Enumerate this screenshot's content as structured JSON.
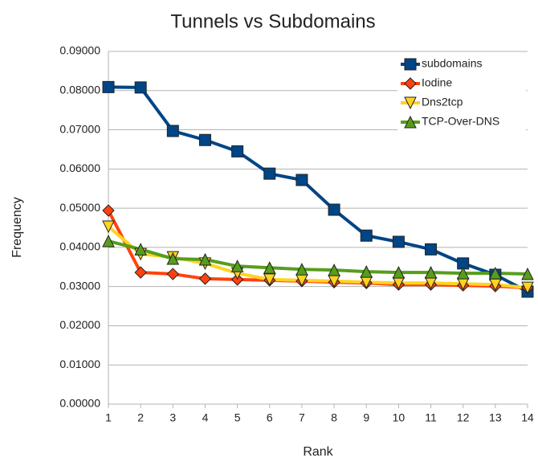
{
  "chart_data": {
    "type": "line",
    "title": "Tunnels vs Subdomains",
    "xlabel": "Rank",
    "ylabel": "Frequency",
    "x": [
      1,
      2,
      3,
      4,
      5,
      6,
      7,
      8,
      9,
      10,
      11,
      12,
      13,
      14
    ],
    "xlim": [
      1,
      14
    ],
    "xticks": [
      1,
      2,
      3,
      4,
      5,
      6,
      7,
      8,
      9,
      10,
      11,
      12,
      13,
      14
    ],
    "ylim": [
      0,
      0.09
    ],
    "yticks": [
      {
        "value": 0,
        "label": "0.00000"
      },
      {
        "value": 0.01,
        "label": "0.01000"
      },
      {
        "value": 0.02,
        "label": "0.02000"
      },
      {
        "value": 0.03,
        "label": "0.03000"
      },
      {
        "value": 0.04,
        "label": "0.04000"
      },
      {
        "value": 0.05,
        "label": "0.05000"
      },
      {
        "value": 0.06,
        "label": "0.06000"
      },
      {
        "value": 0.07,
        "label": "0.07000"
      },
      {
        "value": 0.08,
        "label": "0.08000"
      },
      {
        "value": 0.09,
        "label": "0.09000"
      }
    ],
    "grid": true,
    "legend": "upper right",
    "series": [
      {
        "name": "subdomains",
        "color": "#004586",
        "marker": "square",
        "values": [
          0.0809,
          0.0808,
          0.0697,
          0.0674,
          0.0645,
          0.0588,
          0.0572,
          0.0496,
          0.043,
          0.0414,
          0.0395,
          0.0359,
          0.033,
          0.0287
        ]
      },
      {
        "name": "Iodine",
        "color": "#ff420e",
        "marker": "diamond",
        "values": [
          0.0494,
          0.0336,
          0.0332,
          0.032,
          0.0318,
          0.0316,
          0.0314,
          0.0311,
          0.0309,
          0.0305,
          0.0305,
          0.0303,
          0.0301,
          0.0297
        ]
      },
      {
        "name": "Dns2tcp",
        "color": "#ffd320",
        "marker": "triangle-down",
        "values": [
          0.0453,
          0.0383,
          0.0375,
          0.0359,
          0.0334,
          0.0318,
          0.0316,
          0.0314,
          0.0311,
          0.0309,
          0.0309,
          0.0307,
          0.0305,
          0.0297
        ]
      },
      {
        "name": "TCP-Over-DNS",
        "color": "#579d1c",
        "marker": "triangle-up",
        "values": [
          0.0416,
          0.0395,
          0.0371,
          0.0369,
          0.0352,
          0.0348,
          0.0344,
          0.0342,
          0.0338,
          0.0336,
          0.0336,
          0.0334,
          0.0334,
          0.0332
        ]
      }
    ]
  }
}
